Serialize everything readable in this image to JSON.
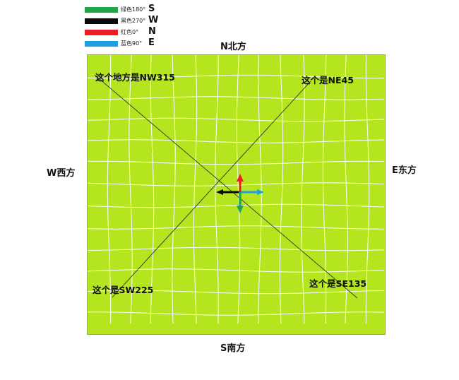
{
  "legend": [
    {
      "color": "#1fa64a",
      "label": "绿色180°",
      "letter": "S"
    },
    {
      "color": "#0a0a0a",
      "label": "黑色270°",
      "letter": "W"
    },
    {
      "color": "#ee1c25",
      "label": "红色0°",
      "letter": "N"
    },
    {
      "color": "#1fa1e0",
      "label": "蓝色90°",
      "letter": "E"
    }
  ],
  "directions": {
    "north": "N北方",
    "south": "S南方",
    "west": "W西方",
    "east": "E东方"
  },
  "callouts": {
    "nw": "这个地方是NW315",
    "ne": "这个是NE45",
    "sw": "这个是SW225",
    "se": "这个是SE135"
  },
  "colors": {
    "field": "#b4e51f",
    "grid": "#ffffff",
    "diagonal": "#333333",
    "arrow_north": "#ee1c25",
    "arrow_east": "#1fa1e0",
    "arrow_south": "#1fa64a",
    "arrow_west": "#0a0a0a"
  }
}
